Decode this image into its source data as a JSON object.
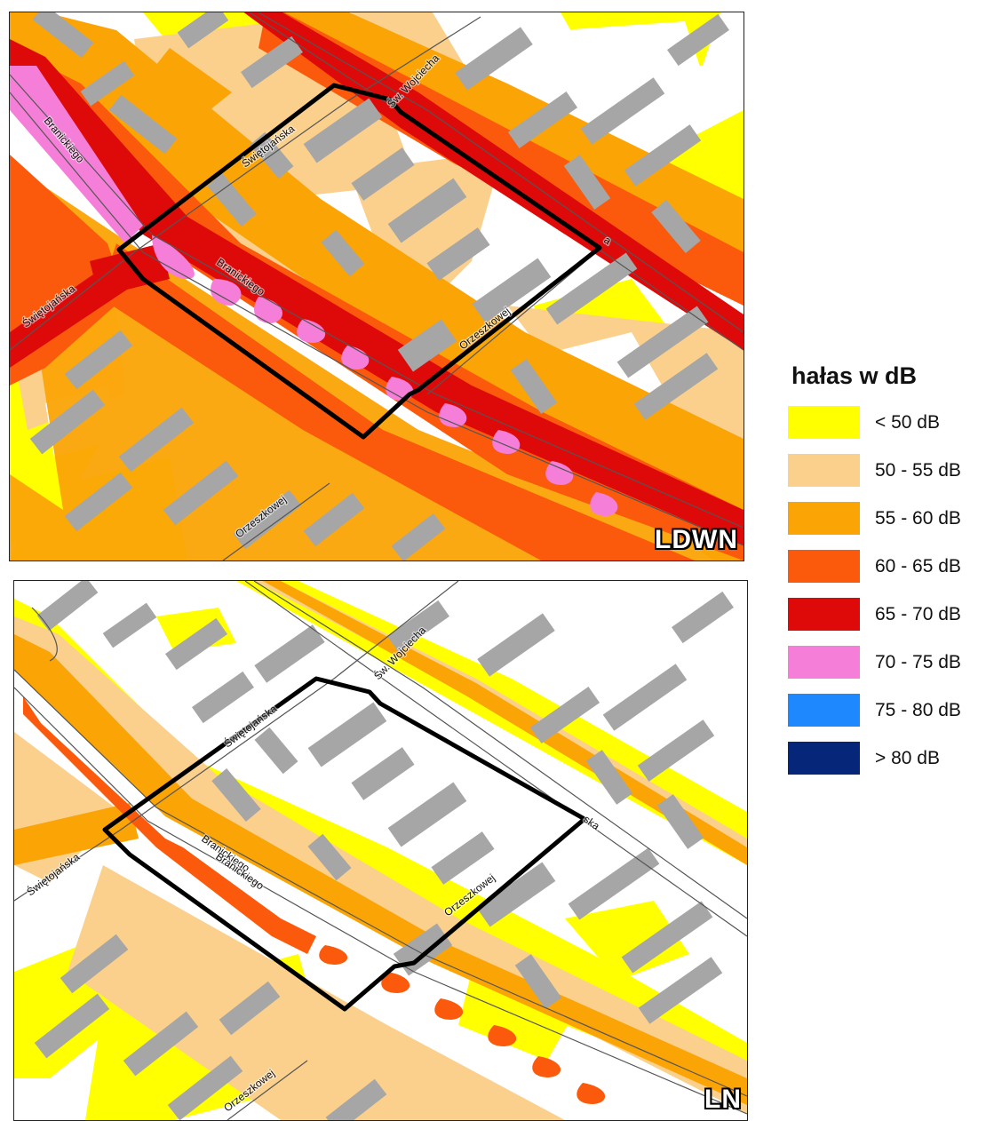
{
  "colors": {
    "buildings": "#a6a6a6",
    "boundary": "#000000",
    "road_line": "#555555",
    "background": "#ffffff"
  },
  "maps": {
    "top": {
      "badge": "LDWN",
      "streets": {
        "wojciecha": "Św. Wojciecha",
        "swietojanska_upper": "Świętojańska",
        "swietojanska_left": "Świętojańska",
        "branickiego_a": "Branickiego",
        "branickiego_b": "Branickiego",
        "orzeszkowej_right": "Orzeszkowej",
        "orzeszkowej_bottom": "Orzeszkowej",
        "fragment_right": "a"
      }
    },
    "bottom": {
      "badge": "LN",
      "streets": {
        "wojciecha": "Św. Wojciecha",
        "swietojanska_upper": "Świętojańska",
        "swietojanska_left": "Świętojańska",
        "branickiego_a": "Branickiego",
        "branickiego_b": "Branickiego",
        "orzeszkowej_right": "Orzeszkowej",
        "orzeszkowej_bottom": "Orzeszkowej",
        "fragment_right": "ska"
      }
    }
  },
  "legend": {
    "title": "hałas w dB",
    "items": [
      {
        "label": "< 50 dB",
        "color": "#ffff00"
      },
      {
        "label": "50 - 55 dB",
        "color": "#fad08c"
      },
      {
        "label": "55 - 60 dB",
        "color": "#fba406"
      },
      {
        "label": "60 - 65 dB",
        "color": "#fb5a0c"
      },
      {
        "label": "65 - 70 dB",
        "color": "#de0a0a"
      },
      {
        "label": "70 - 75 dB",
        "color": "#f57fd8"
      },
      {
        "label": "75 - 80 dB",
        "color": "#1e88ff"
      },
      {
        "label": "> 80 dB",
        "color": "#06267a"
      }
    ]
  }
}
